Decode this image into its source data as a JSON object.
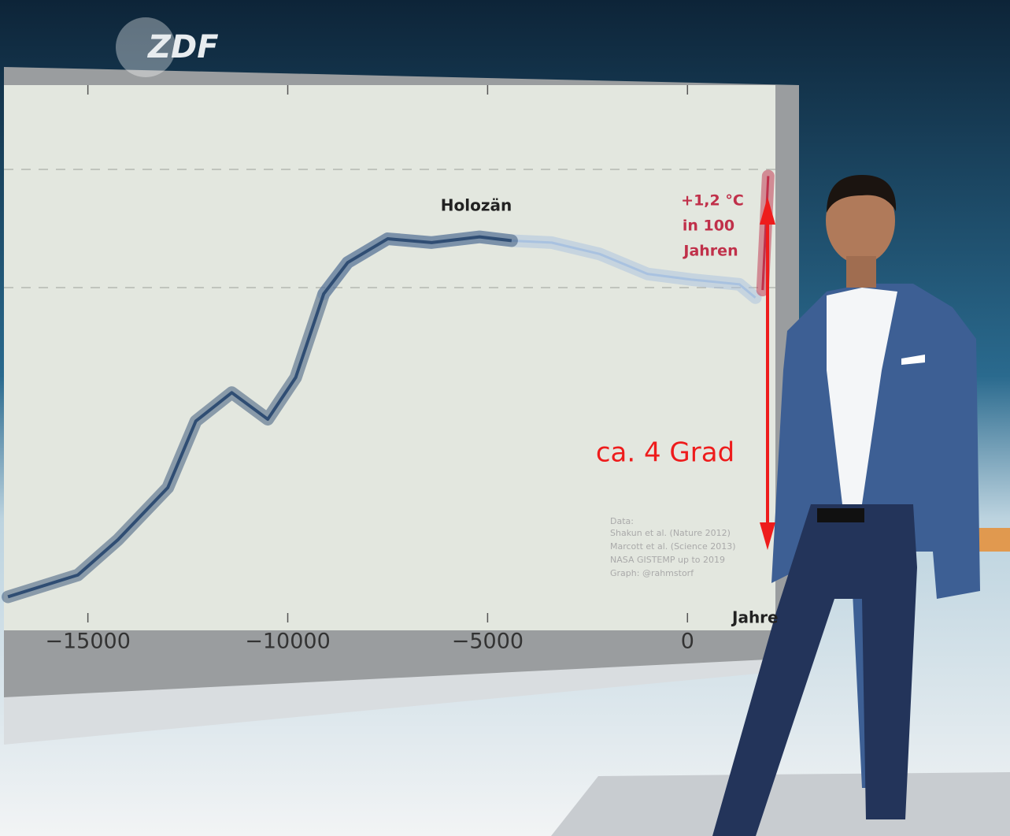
{
  "logo": "ZDF",
  "chart_data": {
    "type": "line",
    "x_label": "Jahre",
    "xlim": [
      -17100,
      2200
    ],
    "ylim": [
      -3.5,
      2.1
    ],
    "xticks": [
      {
        "value": -15000,
        "label": "−15000"
      },
      {
        "value": -10000,
        "label": "−10000"
      },
      {
        "value": -5000,
        "label": "−5000"
      },
      0
    ],
    "series": [
      {
        "color": "#a9c2e0",
        "x": [
          -9100,
          -8500,
          -7500,
          -6400,
          -5200,
          -4400,
          -3400,
          -2200,
          -1000,
          100,
          1300,
          1700
        ],
        "values": [
          -0.04,
          0.29,
          0.54,
          0.5,
          0.56,
          0.52,
          0.5,
          0.38,
          0.17,
          0.11,
          0.06,
          -0.08
        ]
      },
      {
        "color": "#2f4d73",
        "x": [
          -17000,
          -15250,
          -14250,
          -13000,
          -12300,
          -11400,
          -10500,
          -9800,
          -9100,
          -8500,
          -7500,
          -6400,
          -5200,
          -4400
        ],
        "values": [
          -3.23,
          -3.0,
          -2.63,
          -2.08,
          -1.38,
          -1.08,
          -1.36,
          -0.92,
          -0.04,
          0.29,
          0.54,
          0.5,
          0.56,
          0.52
        ]
      },
      {
        "color": "#c0304a",
        "x": [
          1880,
          2020
        ],
        "values": [
          0,
          1.2
        ]
      }
    ],
    "annotations": {
      "period": "Holozän",
      "rise": [
        "+1,2 °C",
        "in 100",
        "Jahren"
      ],
      "span": "ca. 4 Grad",
      "credits": [
        "Data:",
        "Shakun et al. (Nature 2012)",
        "Marcott et al. (Science 2013)",
        "NASA GISTEMP up to 2019",
        "Graph: @rahmstorf"
      ]
    }
  }
}
